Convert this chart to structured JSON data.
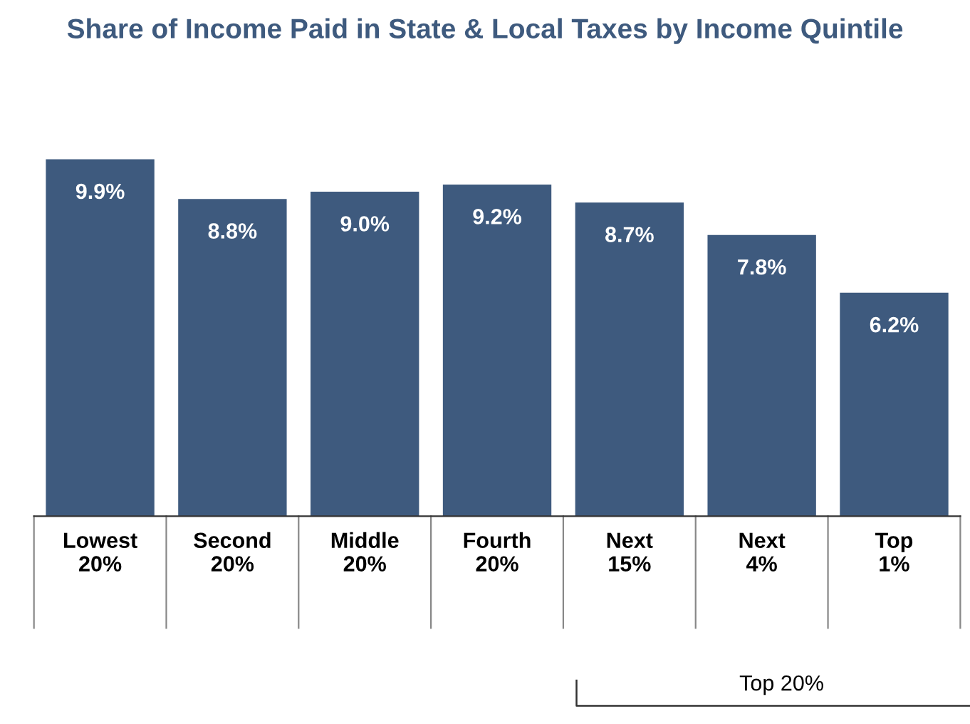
{
  "chart_data": {
    "type": "bar",
    "title": "Share of Income Paid in State & Local Taxes by Income Quintile",
    "categories": [
      "Lowest\n20%",
      "Second\n20%",
      "Middle\n20%",
      "Fourth\n20%",
      "Next\n15%",
      "Next\n4%",
      "Top\n1%"
    ],
    "values": [
      9.9,
      8.8,
      9.0,
      9.2,
      8.7,
      7.8,
      6.2
    ],
    "value_labels": [
      "9.9%",
      "8.8%",
      "9.0%",
      "9.2%",
      "8.7%",
      "7.8%",
      "6.2%"
    ],
    "color": "#3e5a7e",
    "grid": false,
    "legend": false,
    "annotations": [
      "Top 20%"
    ]
  }
}
